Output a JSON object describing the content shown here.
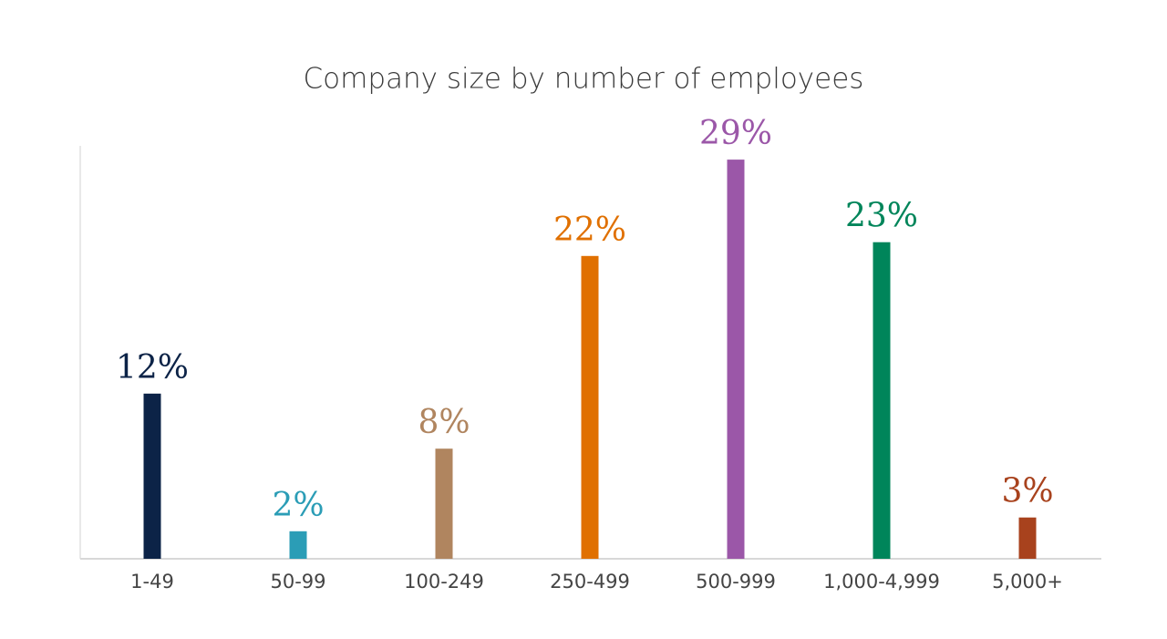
{
  "chart_data": {
    "type": "bar",
    "title": "Company size by number of employees",
    "categories": [
      "1-49",
      "50-99",
      "100-249",
      "250-499",
      "500-999",
      "1,000-4,999",
      "5,000+"
    ],
    "values": [
      12,
      2,
      8,
      22,
      29,
      23,
      3
    ],
    "value_labels": [
      "12%",
      "2%",
      "8%",
      "22%",
      "29%",
      "23%",
      "3%"
    ],
    "colors": [
      "#0c2347",
      "#2b9db6",
      "#b0855f",
      "#e07000",
      "#9b57a8",
      "#00855a",
      "#a8421d"
    ],
    "ylim": [
      0,
      30
    ]
  }
}
